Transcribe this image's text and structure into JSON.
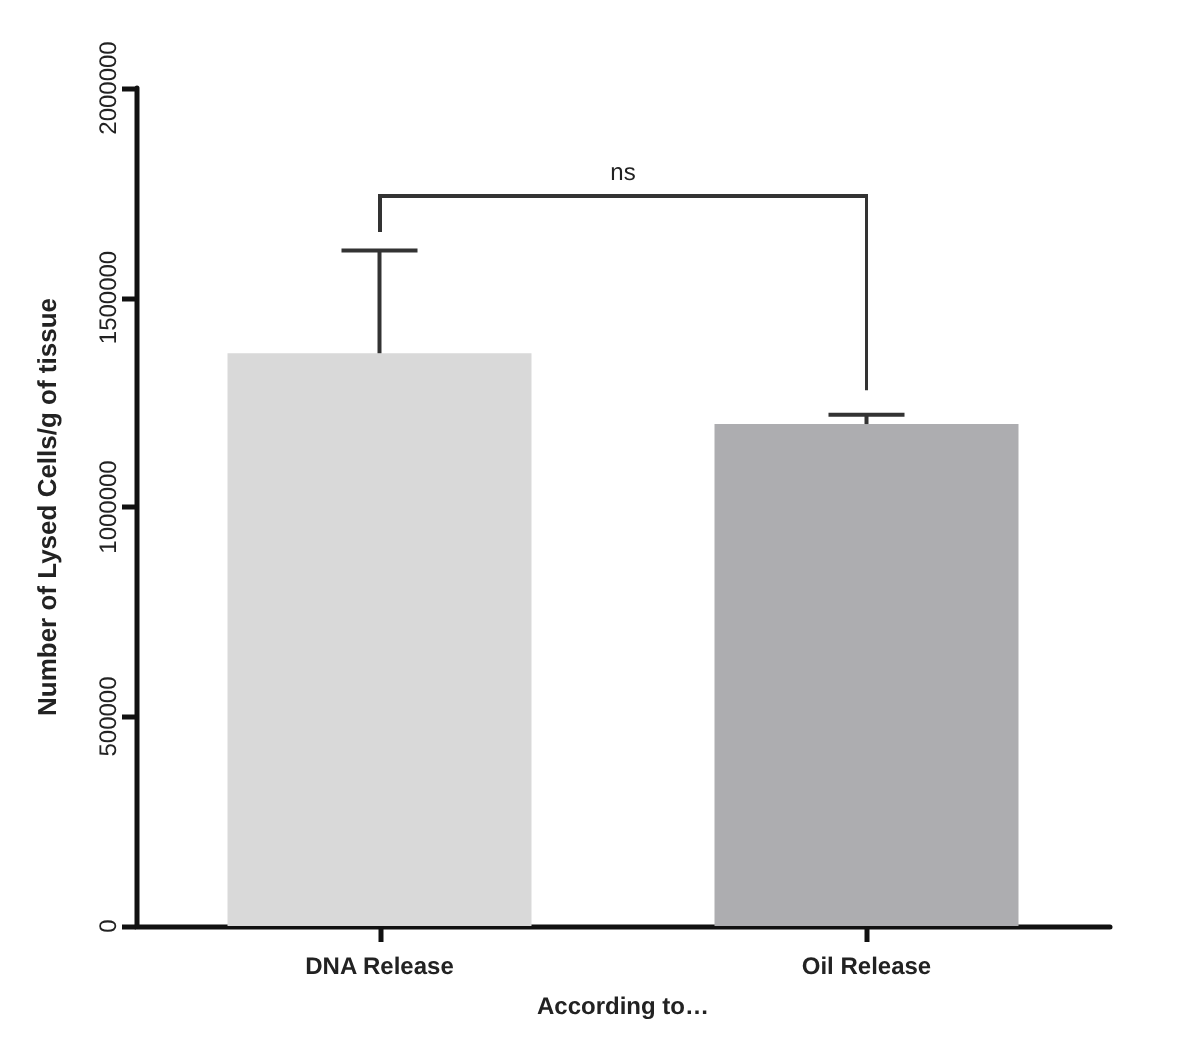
{
  "chart_data": {
    "type": "bar",
    "xlabel": "According to…",
    "ylabel": "Number of Lysed Cells/g of tissue",
    "categories": [
      "DNA Release",
      "Oil Release"
    ],
    "values": [
      1367000,
      1198000
    ],
    "colors": [
      "#d9d9d9",
      "#adadb0"
    ],
    "errors": [
      [
        1367000,
        1612000
      ],
      [
        1198000,
        1220000
      ]
    ],
    "ylim": [
      0,
      2000000
    ],
    "yticks": [
      0,
      500000,
      1000000,
      1500000,
      2000000
    ],
    "annotations": [
      "ns"
    ],
    "grid": false
  }
}
